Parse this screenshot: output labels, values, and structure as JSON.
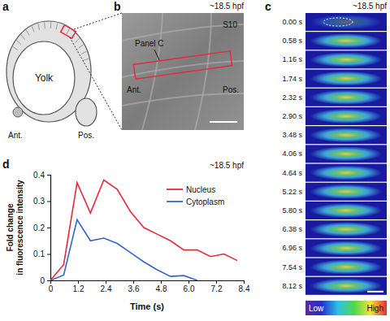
{
  "chart_data": {
    "type": "line",
    "title": "~18.5 hpf",
    "xlabel": "Time (s)",
    "ylabel": "Fold change in fluorescence intensity",
    "x": [
      0,
      0.58,
      1.16,
      1.74,
      2.32,
      2.9,
      3.48,
      4.06,
      4.64,
      5.22,
      5.8,
      6.38,
      6.96,
      7.54,
      8.12
    ],
    "series": [
      {
        "name": "Nucleus",
        "color": "#e8283c",
        "values": [
          0,
          0.06,
          0.37,
          0.255,
          0.38,
          0.345,
          0.26,
          0.2,
          0.175,
          0.15,
          0.115,
          0.115,
          0.09,
          0.1,
          0.075
        ]
      },
      {
        "name": "Cytoplasm",
        "color": "#3366cc",
        "values": [
          0,
          0.02,
          0.23,
          0.15,
          0.16,
          0.14,
          0.105,
          0.07,
          0.04,
          0.015,
          0.018,
          0,
          null,
          null,
          null
        ]
      }
    ],
    "xlim": [
      0,
      8.4
    ],
    "ylim": [
      0,
      0.4
    ],
    "xticks": [
      0,
      1.2,
      2.4,
      3.6,
      4.8,
      {
        "value": 6,
        "label": "6.0"
      },
      7.2,
      8.4
    ],
    "yticks": [
      0,
      0.1,
      0.2,
      0.3,
      0.4
    ],
    "legend": "upper right"
  },
  "figure": {
    "panel_labels": [
      "a",
      "b",
      "c",
      "d"
    ],
    "a": {
      "yolk": "Yolk",
      "anterior": "Ant.",
      "posterior": "Pos."
    },
    "b": {
      "stage": "~18.5 hpf",
      "inset": "Panel C",
      "somite": "S10",
      "anterior": "Ant.",
      "posterior": "Pos."
    },
    "c": {
      "stage": "~18.5 hpf",
      "times": [
        "0.00 s",
        "0.58 s",
        "1.16 s",
        "1.74 s",
        "2.32 s",
        "2.90 s",
        "3.48 s",
        "4.06 s",
        "4.64 s",
        "5.22 s",
        "5.80 s",
        "6.38 s",
        "6.96 s",
        "7.54 s",
        "8.12 s"
      ],
      "colorbar_low": "Low",
      "colorbar_high": "High"
    }
  }
}
